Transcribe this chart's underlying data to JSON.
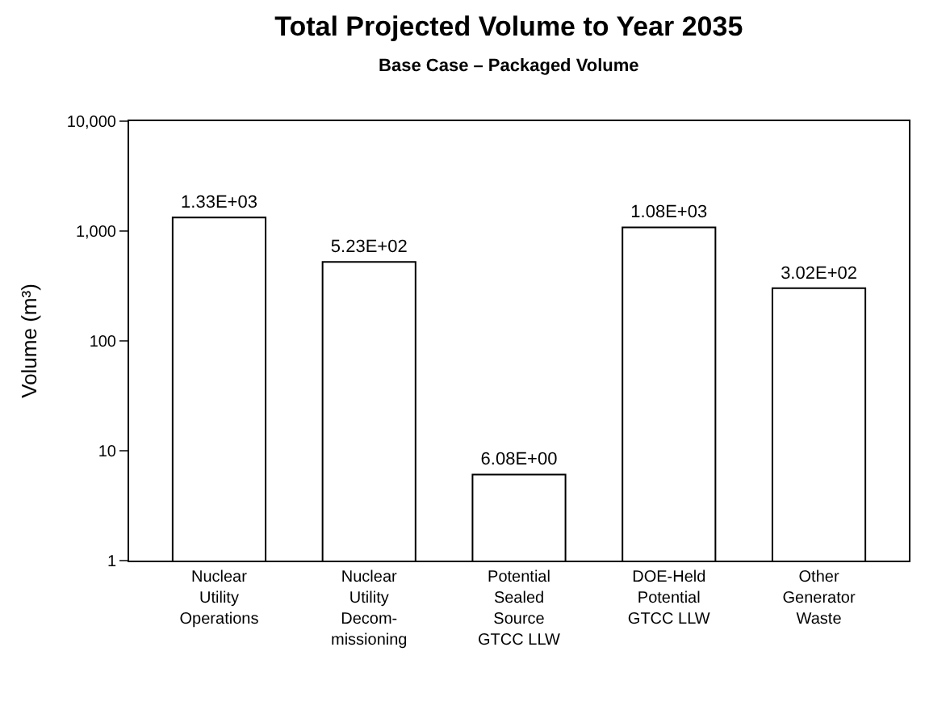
{
  "chart_data": {
    "type": "bar",
    "title": "Total Projected Volume to Year 2035",
    "subtitle": "Base Case – Packaged Volume",
    "ylabel": "Volume (m³)",
    "categories": [
      "Nuclear\nUtility\nOperations",
      "Nuclear\nUtility\nDecom-\nmissioning",
      "Potential\nSealed\nSource\nGTCC LLW",
      "DOE-Held\nPotential\nGTCC LLW",
      "Other\nGenerator\nWaste"
    ],
    "values": [
      1330,
      523,
      6.08,
      1080,
      302
    ],
    "value_labels": [
      "1.33E+03",
      "5.23E+02",
      "6.08E+00",
      "1.08E+03",
      "3.02E+02"
    ],
    "color": "#ffffff",
    "log": true,
    "ylim": [
      1,
      10000
    ],
    "yticks": [
      1,
      10,
      100,
      {
        "value": 1000,
        "label": "1,000"
      },
      {
        "value": 10000,
        "label": "10,000"
      }
    ],
    "legend": false
  }
}
